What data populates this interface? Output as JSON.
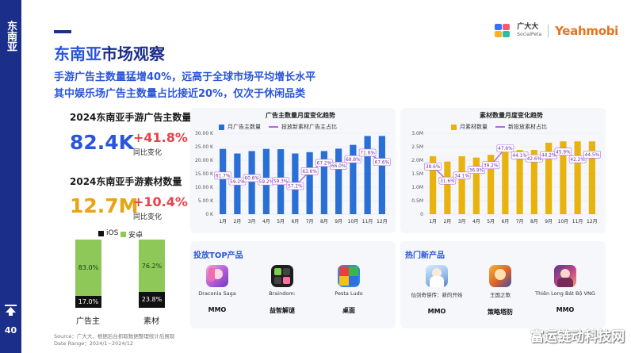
{
  "sidebar": {
    "region": "东南亚",
    "page_number": "40"
  },
  "header": {
    "title_highlight": "东南亚",
    "title_rest": "市场观察",
    "subtitle_line1": "手游广告主数量猛增40%，远高于全球市场平均增长水平",
    "subtitle_line2": "其中娱乐场广告主数量占比接近20%，仅次于休闲品类"
  },
  "logos": {
    "socialpeta_cn": "广大大",
    "socialpeta_en": "SocialPeta",
    "yeahmobi": "Yeahmobi"
  },
  "stats": [
    {
      "title": "2024东南亚手游广告主数量",
      "value": "82.4K",
      "change": "+41.8%",
      "change_label": "同比变化",
      "color": "#2a55d8"
    },
    {
      "title": "2024东南亚手游素材数量",
      "value": "12.7M",
      "change": "+10.4%",
      "change_label": "同比变化",
      "color": "#e8a412"
    }
  ],
  "platform_split": {
    "legend": [
      {
        "label": "iOS",
        "color": "#111111"
      },
      {
        "label": "安卓",
        "color": "#8dc858"
      }
    ],
    "bars": [
      {
        "category": "广告主",
        "android_pct": 83.0,
        "ios_pct": 17.0,
        "android_label": "83.0%",
        "ios_label": "17.0%"
      },
      {
        "category": "素材",
        "android_pct": 76.2,
        "ios_pct": 23.8,
        "android_label": "76.2%",
        "ios_label": "23.8%"
      }
    ]
  },
  "chart_data": [
    {
      "type": "bar",
      "title": "广告主数量月度变化趋势",
      "categories": [
        "1月",
        "2月",
        "3月",
        "4月",
        "5月",
        "6月",
        "7月",
        "8月",
        "9月",
        "10月",
        "11月",
        "12月"
      ],
      "series": [
        {
          "name": "月广告主数量",
          "kind": "bar",
          "values": [
            24200,
            22500,
            23400,
            24200,
            24100,
            22500,
            23000,
            23400,
            24300,
            25700,
            29000,
            29000
          ]
        },
        {
          "name": "投放新素材广告主占比",
          "kind": "line",
          "values": [
            61.7,
            59.2,
            60.6,
            59.2,
            59.3,
            57.2,
            63.6,
            67.2,
            66.0,
            68.8,
            71.6,
            67.6
          ],
          "labels": [
            "61.7%",
            "59.2%",
            "60.6%",
            "59.2%",
            "59.3%",
            "57.2%",
            "63.6%",
            "67.2%",
            "66.0%",
            "68.8%",
            "71.6%",
            "67.6%"
          ]
        }
      ],
      "ylim": [
        0,
        30000
      ],
      "yticks": [
        "0 K",
        "5.00 K",
        "10.00 K",
        "15.00 K",
        "20.00 K",
        "25.00 K",
        "30.00 K"
      ],
      "line_range": [
        45,
        80
      ],
      "bar_color": "#2a6fd6",
      "line_color": "#b36ae0"
    },
    {
      "type": "bar",
      "title": "素材数量月度变化趋势",
      "categories": [
        "1月",
        "2月",
        "3月",
        "4月",
        "5月",
        "6月",
        "7月",
        "8月",
        "9月",
        "10月",
        "11月",
        "12月"
      ],
      "series": [
        {
          "name": "月素材数量",
          "kind": "bar",
          "values": [
            2150000,
            1950000,
            2150000,
            2100000,
            2200000,
            2300000,
            2380000,
            2380000,
            2650000,
            2700000,
            2700000,
            2700000
          ]
        },
        {
          "name": "新投放素材占比",
          "kind": "line",
          "values": [
            38.6,
            31.6,
            34.1,
            36.9,
            39.2,
            47.6,
            44.1,
            42.6,
            44.2,
            45.9,
            42.2,
            44.5
          ],
          "labels": [
            "38.6%",
            "31.6%",
            "34.1%",
            "36.9%",
            "39.2%",
            "47.6%",
            "44.1%",
            "42.6%",
            "44.2%",
            "45.9%",
            "42.2%",
            "44.5%"
          ]
        }
      ],
      "ylim": [
        0,
        3000000
      ],
      "yticks": [
        "0",
        "0.5M",
        "1.0M",
        "1.5M",
        "2.0M",
        "2.5M",
        "3.0M"
      ],
      "line_range": [
        15,
        55
      ],
      "bar_color": "#e8b30e",
      "line_color": "#b36ae0"
    }
  ],
  "top_products": {
    "title": "投放TOP产品",
    "items": [
      {
        "name": "Draconia Saga",
        "genre": "MMO",
        "icon": "draconia-saga-icon"
      },
      {
        "name": "Braindom:",
        "genre": "益智解谜",
        "icon": "braindom-icon"
      },
      {
        "name": "Pesta Ludo",
        "genre": "桌面",
        "icon": "pesta-ludo-icon"
      }
    ]
  },
  "hot_products": {
    "title": "热门新产品",
    "items": [
      {
        "name": "仙剑奇侠传：新的开始",
        "genre": "MMO",
        "icon": "xianjian-icon"
      },
      {
        "name": "王国之歌",
        "genre": "策略塔防",
        "icon": "kingdom-song-icon"
      },
      {
        "name": "Thiên Long Bát Bộ VNG",
        "genre": "MMO",
        "icon": "thien-long-icon"
      }
    ]
  },
  "footer": {
    "source": "Source：广大大，根据后台抓取数据整理统计后展现",
    "date_range": "Date Range：2024/1~2024/12"
  },
  "watermark": "富运链动科技网"
}
